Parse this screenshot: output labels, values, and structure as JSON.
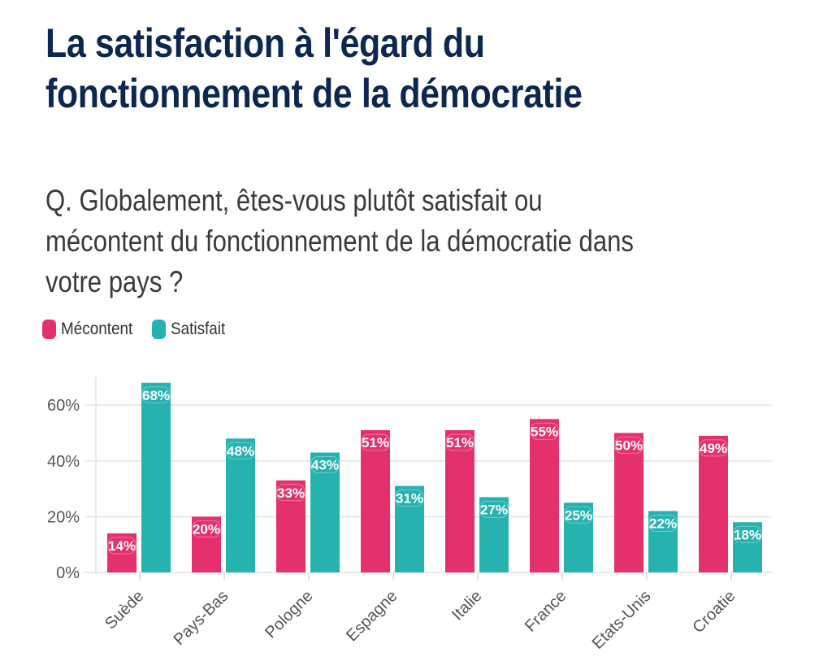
{
  "title": {
    "line1": "La satisfaction à l'égard du",
    "line2": "fonctionnement de la démocratie"
  },
  "subtitle": {
    "line1": "Q. Globalement, êtes-vous plutôt satisfait ou",
    "line2": "mécontent du fonctionnement de la démocratie dans",
    "line3": "votre pays ?"
  },
  "legend": [
    {
      "label": "Mécontent",
      "color": "#e5306e"
    },
    {
      "label": "Satisfait",
      "color": "#26b2ae"
    }
  ],
  "chart_data": {
    "type": "bar",
    "title": "La satisfaction à l'égard du fonctionnement de la démocratie",
    "subtitle": "Q. Globalement, êtes-vous plutôt satisfait ou mécontent du fonctionnement de la démocratie dans votre pays ?",
    "categories": [
      "Suède",
      "Pays-Bas",
      "Pologne",
      "Espagne",
      "Italie",
      "France",
      "Etats-Unis",
      "Croatie"
    ],
    "series": [
      {
        "name": "Mécontent",
        "color": "#e5306e",
        "values": [
          14,
          20,
          33,
          51,
          51,
          55,
          50,
          49
        ]
      },
      {
        "name": "Satisfait",
        "color": "#26b2ae",
        "values": [
          68,
          48,
          43,
          31,
          27,
          25,
          22,
          18
        ]
      }
    ],
    "xlabel": "",
    "ylabel": "",
    "ylim": [
      0,
      70
    ],
    "yticks": [
      0,
      20,
      40,
      60
    ],
    "ytick_labels": [
      "0%",
      "20%",
      "40%",
      "60%"
    ],
    "value_suffix": "%",
    "grid": true,
    "legend_position": "top-left",
    "x_label_rotation": "diagonal"
  }
}
